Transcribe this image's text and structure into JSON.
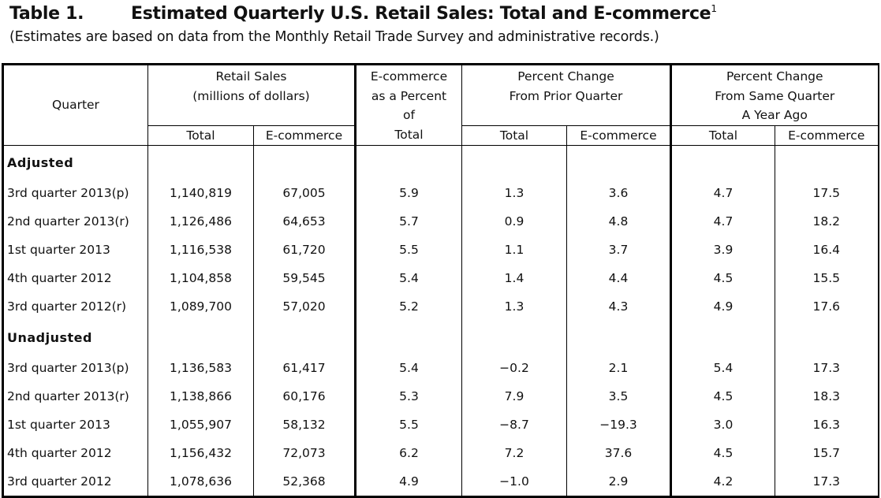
{
  "title": {
    "number": "Table 1.",
    "text": "Estimated Quarterly U.S. Retail Sales: Total and E-commerce",
    "footnote_mark": "1"
  },
  "subtitle": "(Estimates are based on data from the Monthly Retail Trade Survey and administrative records.)",
  "headers": {
    "quarter": "Quarter",
    "retail_sales_line1": "Retail Sales",
    "retail_sales_line2": "(millions of dollars)",
    "ecommerce_pct_line1": "E-commerce",
    "ecommerce_pct_line2": "as a Percent",
    "ecommerce_pct_line3": "of",
    "ecommerce_pct_line4": "Total",
    "prior_q_line1": "Percent Change",
    "prior_q_line2": "From Prior Quarter",
    "year_ago_line1": "Percent Change",
    "year_ago_line2": "From Same Quarter",
    "year_ago_line3": "A Year Ago",
    "sub_total": "Total",
    "sub_ecommerce": "E-commerce"
  },
  "sections": [
    {
      "label": "Adjusted",
      "rows": [
        {
          "quarter": "3rd quarter 2013(p)",
          "total": "1,140,819",
          "ecommerce": "67,005",
          "pct_of_total": "5.9",
          "prior_total": "1.3",
          "prior_ecommerce": "3.6",
          "year_total": "4.7",
          "year_ecommerce": "17.5"
        },
        {
          "quarter": "2nd quarter 2013(r)",
          "total": "1,126,486",
          "ecommerce": "64,653",
          "pct_of_total": "5.7",
          "prior_total": "0.9",
          "prior_ecommerce": "4.8",
          "year_total": "4.7",
          "year_ecommerce": "18.2"
        },
        {
          "quarter": "1st quarter 2013",
          "total": "1,116,538",
          "ecommerce": "61,720",
          "pct_of_total": "5.5",
          "prior_total": "1.1",
          "prior_ecommerce": "3.7",
          "year_total": "3.9",
          "year_ecommerce": "16.4"
        },
        {
          "quarter": "4th quarter 2012",
          "total": "1,104,858",
          "ecommerce": "59,545",
          "pct_of_total": "5.4",
          "prior_total": "1.4",
          "prior_ecommerce": "4.4",
          "year_total": "4.5",
          "year_ecommerce": "15.5"
        },
        {
          "quarter": "3rd quarter 2012(r)",
          "total": "1,089,700",
          "ecommerce": "57,020",
          "pct_of_total": "5.2",
          "prior_total": "1.3",
          "prior_ecommerce": "4.3",
          "year_total": "4.9",
          "year_ecommerce": "17.6"
        }
      ]
    },
    {
      "label": "Unadjusted",
      "rows": [
        {
          "quarter": "3rd quarter 2013(p)",
          "total": "1,136,583",
          "ecommerce": "61,417",
          "pct_of_total": "5.4",
          "prior_total": "-0.2",
          "prior_ecommerce": "2.1",
          "year_total": "5.4",
          "year_ecommerce": "17.3"
        },
        {
          "quarter": "2nd quarter 2013(r)",
          "total": "1,138,866",
          "ecommerce": "60,176",
          "pct_of_total": "5.3",
          "prior_total": "7.9",
          "prior_ecommerce": "3.5",
          "year_total": "4.5",
          "year_ecommerce": "18.3"
        },
        {
          "quarter": "1st quarter 2013",
          "total": "1,055,907",
          "ecommerce": "58,132",
          "pct_of_total": "5.5",
          "prior_total": "-8.7",
          "prior_ecommerce": "-19.3",
          "year_total": "3.0",
          "year_ecommerce": "16.3"
        },
        {
          "quarter": "4th quarter 2012",
          "total": "1,156,432",
          "ecommerce": "72,073",
          "pct_of_total": "6.2",
          "prior_total": "7.2",
          "prior_ecommerce": "37.6",
          "year_total": "4.5",
          "year_ecommerce": "15.7"
        },
        {
          "quarter": "3rd quarter 2012",
          "total": "1,078,636",
          "ecommerce": "52,368",
          "pct_of_total": "4.9",
          "prior_total": "-1.0",
          "prior_ecommerce": "2.9",
          "year_total": "4.2",
          "year_ecommerce": "17.3"
        }
      ]
    }
  ]
}
